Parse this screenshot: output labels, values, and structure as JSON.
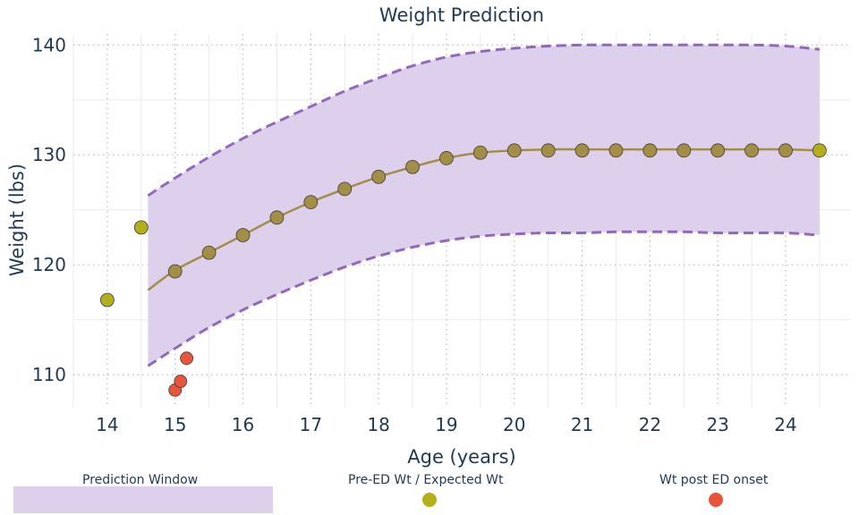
{
  "chart_data": {
    "type": "line",
    "title": "Weight Prediction",
    "xlabel": "Age (years)",
    "ylabel": "Weight (lbs)",
    "xlim": [
      13.5,
      24.95
    ],
    "ylim": [
      107,
      141
    ],
    "x_ticks": [
      14,
      15,
      16,
      17,
      18,
      19,
      20,
      21,
      22,
      23,
      24
    ],
    "y_ticks": [
      110,
      120,
      130,
      140
    ],
    "grid": true,
    "colors": {
      "band_fill": "#ddd0ec",
      "band_edge": "#9467bd",
      "expected": "#a48d45",
      "pre_ed": "#b5ad1a",
      "post_ed": "#e8553a",
      "text": "#1f3a52"
    },
    "prediction_window": {
      "x": [
        14.6,
        15.0,
        15.5,
        16.0,
        16.5,
        17.0,
        17.5,
        18.0,
        18.5,
        19.0,
        19.5,
        20.0,
        20.5,
        21.0,
        21.5,
        22.0,
        22.5,
        23.0,
        23.5,
        24.0,
        24.5
      ],
      "upper": [
        126.3,
        127.9,
        129.8,
        131.5,
        133.0,
        134.4,
        135.8,
        137.0,
        138.1,
        138.9,
        139.4,
        139.7,
        139.9,
        140.0,
        140.0,
        140.0,
        140.0,
        140.0,
        140.0,
        139.9,
        139.6
      ],
      "lower": [
        110.8,
        112.4,
        114.3,
        115.9,
        117.3,
        118.6,
        119.8,
        120.8,
        121.6,
        122.2,
        122.6,
        122.8,
        122.9,
        122.9,
        123.0,
        123.0,
        123.0,
        122.9,
        122.9,
        122.9,
        122.7
      ]
    },
    "expected_line": {
      "x": [
        14.6,
        15.0,
        15.5,
        16.0,
        16.5,
        17.0,
        17.5,
        18.0,
        18.5,
        19.0,
        19.5,
        20.0,
        20.5,
        21.0,
        21.5,
        22.0,
        22.5,
        23.0,
        23.5,
        24.0,
        24.5
      ],
      "y": [
        117.7,
        119.5,
        121.1,
        122.7,
        124.3,
        125.7,
        126.9,
        128.0,
        128.9,
        129.7,
        130.2,
        130.4,
        130.5,
        130.5,
        130.5,
        130.5,
        130.5,
        130.5,
        130.5,
        130.5,
        130.4
      ]
    },
    "series": [
      {
        "name": "Pre-ED Wt / Expected Wt",
        "points": [
          {
            "x": 14.0,
            "y": 116.8,
            "kind": "pre"
          },
          {
            "x": 14.5,
            "y": 123.4,
            "kind": "pre"
          },
          {
            "x": 15.0,
            "y": 119.4,
            "kind": "exp"
          },
          {
            "x": 15.5,
            "y": 121.1,
            "kind": "exp"
          },
          {
            "x": 16.0,
            "y": 122.7,
            "kind": "exp"
          },
          {
            "x": 16.5,
            "y": 124.3,
            "kind": "exp"
          },
          {
            "x": 17.0,
            "y": 125.7,
            "kind": "exp"
          },
          {
            "x": 17.5,
            "y": 126.9,
            "kind": "exp"
          },
          {
            "x": 18.0,
            "y": 128.0,
            "kind": "exp"
          },
          {
            "x": 18.5,
            "y": 128.9,
            "kind": "exp"
          },
          {
            "x": 19.0,
            "y": 129.7,
            "kind": "exp"
          },
          {
            "x": 19.5,
            "y": 130.2,
            "kind": "exp"
          },
          {
            "x": 20.0,
            "y": 130.4,
            "kind": "exp"
          },
          {
            "x": 20.5,
            "y": 130.4,
            "kind": "exp"
          },
          {
            "x": 21.0,
            "y": 130.4,
            "kind": "exp"
          },
          {
            "x": 21.5,
            "y": 130.4,
            "kind": "exp"
          },
          {
            "x": 22.0,
            "y": 130.4,
            "kind": "exp"
          },
          {
            "x": 22.5,
            "y": 130.4,
            "kind": "exp"
          },
          {
            "x": 23.0,
            "y": 130.4,
            "kind": "exp"
          },
          {
            "x": 23.5,
            "y": 130.4,
            "kind": "exp"
          },
          {
            "x": 24.0,
            "y": 130.4,
            "kind": "exp"
          },
          {
            "x": 24.5,
            "y": 130.4,
            "kind": "pre"
          }
        ]
      },
      {
        "name": "Wt post ED onset",
        "points": [
          {
            "x": 15.0,
            "y": 108.6
          },
          {
            "x": 15.08,
            "y": 109.4
          },
          {
            "x": 15.17,
            "y": 111.5
          }
        ]
      }
    ],
    "legend": {
      "placement": "bottom",
      "items": [
        {
          "label": "Prediction Window",
          "swatch": "band"
        },
        {
          "label": "Pre-ED Wt / Expected Wt",
          "swatch": "pre"
        },
        {
          "label": "Wt post ED onset",
          "swatch": "post"
        }
      ]
    }
  }
}
